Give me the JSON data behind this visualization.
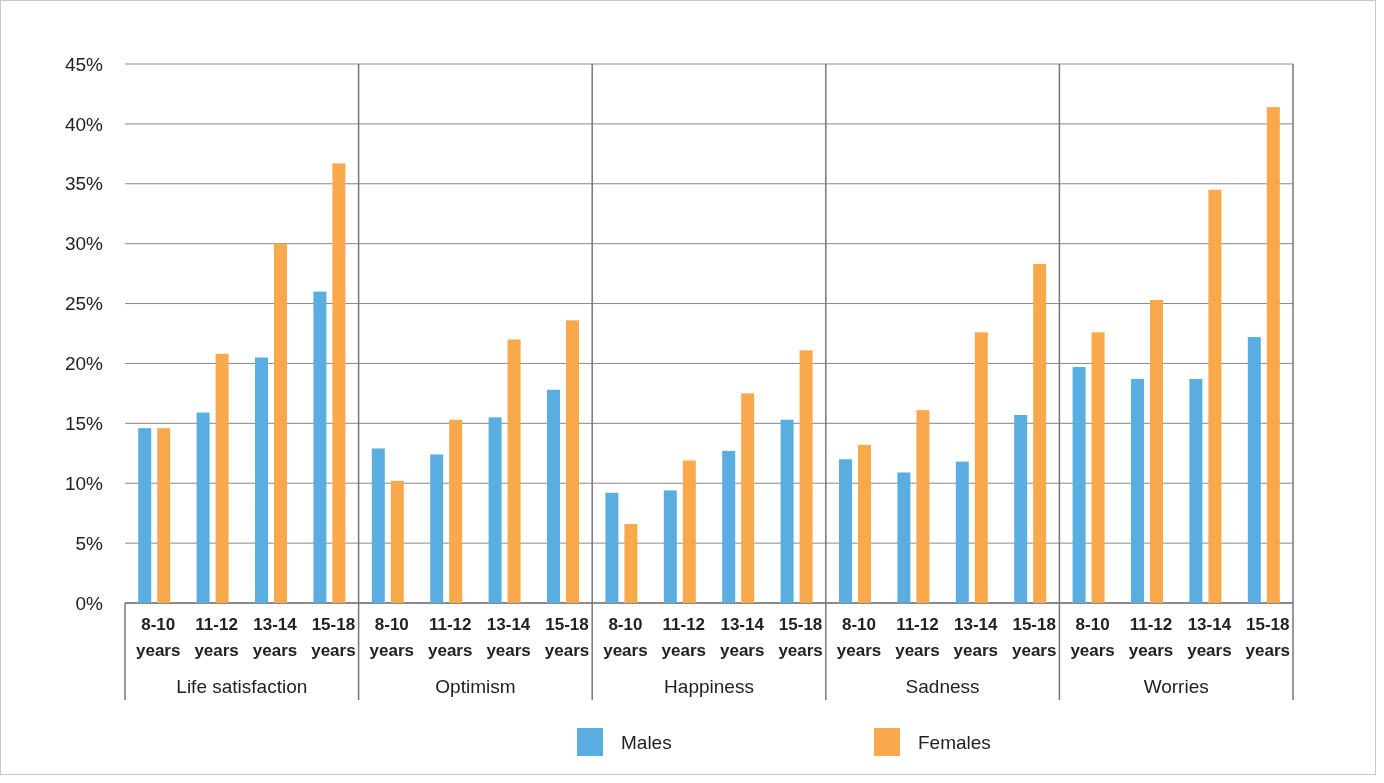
{
  "chart_data": {
    "type": "bar",
    "categories": [
      "8-10 years",
      "11-12 years",
      "13-14 years",
      "15-18 years",
      "8-10 years",
      "11-12 years",
      "13-14 years",
      "15-18 years",
      "8-10 years",
      "11-12 years",
      "13-14 years",
      "15-18 years",
      "8-10 years",
      "11-12 years",
      "13-14 years",
      "15-18 years",
      "8-10 years",
      "11-12 years",
      "13-14 years",
      "15-18 years"
    ],
    "series": [
      {
        "name": "Males",
        "color": "#5aade0",
        "values": [
          14.6,
          15.9,
          20.5,
          26.0,
          12.9,
          12.4,
          15.5,
          17.8,
          9.2,
          9.4,
          12.7,
          15.3,
          12.0,
          10.9,
          11.8,
          15.7,
          19.7,
          18.7,
          18.7,
          22.2
        ]
      },
      {
        "name": "Females",
        "color": "#f9a94b",
        "values": [
          14.6,
          20.8,
          30.0,
          36.7,
          10.2,
          15.3,
          22.0,
          23.6,
          6.6,
          11.9,
          17.5,
          21.1,
          13.2,
          16.1,
          22.6,
          28.3,
          22.6,
          25.3,
          34.5,
          41.4
        ]
      }
    ],
    "annotations": [
      "Life satisfaction",
      "Optimism",
      "Happiness",
      "Sadness",
      "Worries"
    ],
    "ylim": [
      0,
      45
    ],
    "yticks": [
      {
        "value": 0,
        "label": "0%"
      },
      {
        "value": 5,
        "label": "5%"
      },
      {
        "value": 10,
        "label": "10%"
      },
      {
        "value": 15,
        "label": "15%"
      },
      {
        "value": 20,
        "label": "20%"
      },
      {
        "value": 25,
        "label": "25%"
      },
      {
        "value": 30,
        "label": "30%"
      },
      {
        "value": 35,
        "label": "35%"
      },
      {
        "value": 40,
        "label": "40%"
      },
      {
        "value": 45,
        "label": "45%"
      }
    ],
    "grid": "y",
    "legend": "bottom"
  }
}
